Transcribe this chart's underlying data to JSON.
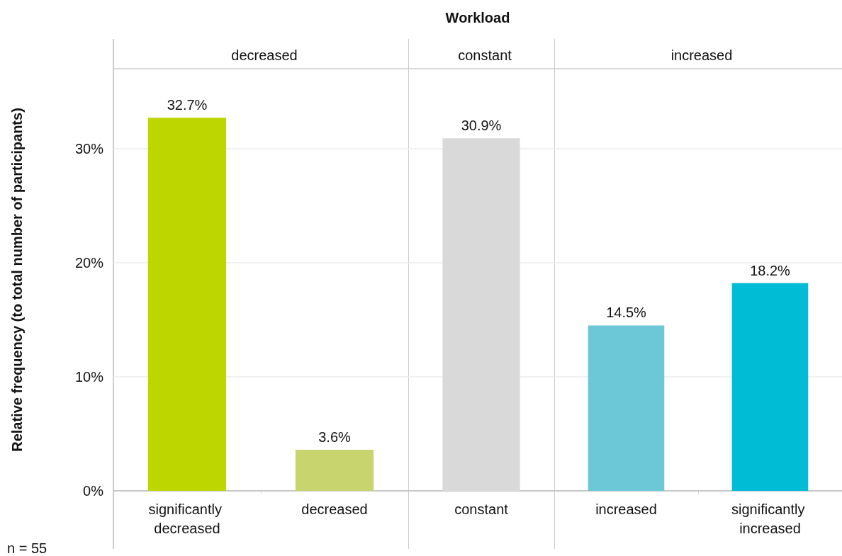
{
  "chart_data": [
    {
      "type": "bar",
      "title": "decreased",
      "annotations": [
        "Workload",
        "n = 55"
      ],
      "ylabel": "Relative frequency (to total number of participants)",
      "categories": [
        "significantly decreased",
        "decreased"
      ],
      "values": [
        32.7,
        3.6
      ],
      "colors": [
        "#bed600",
        "#c8d46e"
      ],
      "value_labels": [
        "32.7%",
        "3.6%"
      ],
      "ylim": [
        0,
        37
      ],
      "yticks": [
        {
          "value": 0,
          "label": "0%"
        },
        {
          "value": 10,
          "label": "10%"
        },
        {
          "value": 20,
          "label": "20%"
        },
        {
          "value": 30,
          "label": "30%"
        }
      ],
      "grid": "y"
    },
    {
      "type": "bar",
      "title": "constant",
      "categories": [
        "constant"
      ],
      "values": [
        30.9
      ],
      "colors": [
        "#d9d9d9"
      ],
      "value_labels": [
        "30.9%"
      ],
      "ylim": [
        0,
        37
      ],
      "yticks": [
        0,
        10,
        20,
        30
      ],
      "grid": "y",
      "tick_labels": "x"
    },
    {
      "type": "bar",
      "title": "increased",
      "categories": [
        "increased",
        "significantly increased"
      ],
      "values": [
        14.5,
        18.2
      ],
      "colors": [
        "#6cc8d6",
        "#00bcd4"
      ],
      "value_labels": [
        "14.5%",
        "18.2%"
      ],
      "ylim": [
        0,
        37
      ],
      "yticks": [
        0,
        10,
        20,
        30
      ],
      "grid": "y",
      "tick_labels": "x"
    }
  ]
}
